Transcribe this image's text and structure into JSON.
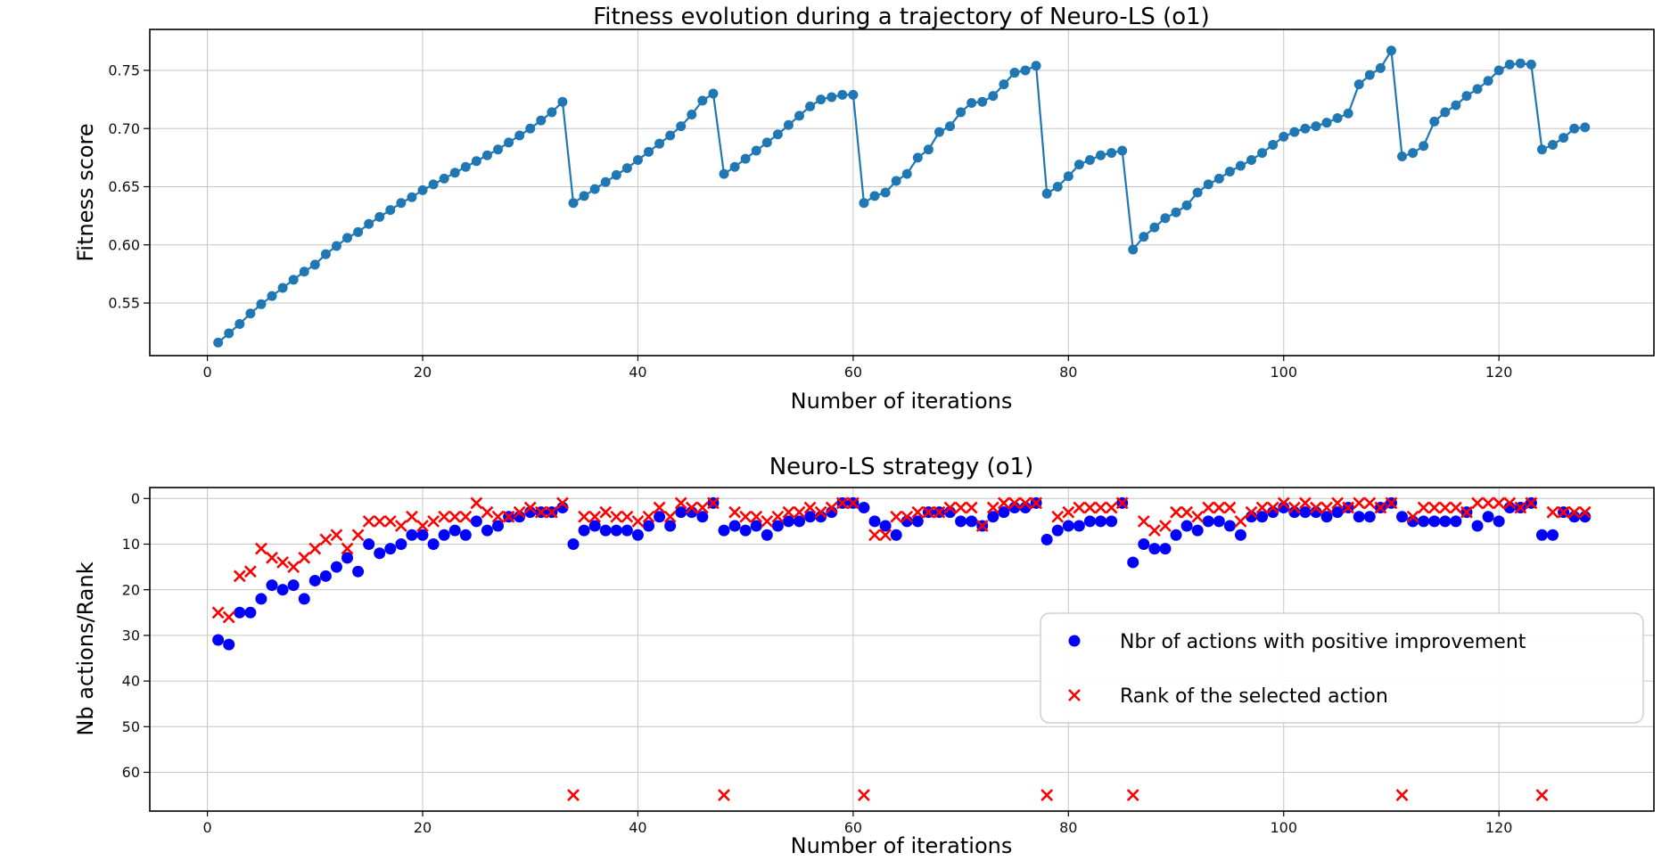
{
  "iterations": [
    1,
    2,
    3,
    4,
    5,
    6,
    7,
    8,
    9,
    10,
    11,
    12,
    13,
    14,
    15,
    16,
    17,
    18,
    19,
    20,
    21,
    22,
    23,
    24,
    25,
    26,
    27,
    28,
    29,
    30,
    31,
    32,
    33,
    34,
    35,
    36,
    37,
    38,
    39,
    40,
    41,
    42,
    43,
    44,
    45,
    46,
    47,
    48,
    49,
    50,
    51,
    52,
    53,
    54,
    55,
    56,
    57,
    58,
    59,
    60,
    61,
    62,
    63,
    64,
    65,
    66,
    67,
    68,
    69,
    70,
    71,
    72,
    73,
    74,
    75,
    76,
    77,
    78,
    79,
    80,
    81,
    82,
    83,
    84,
    85,
    86,
    87,
    88,
    89,
    90,
    91,
    92,
    93,
    94,
    95,
    96,
    97,
    98,
    99,
    100,
    101,
    102,
    103,
    104,
    105,
    106,
    107,
    108,
    109,
    110,
    111,
    112,
    113,
    114,
    115,
    116,
    117,
    118,
    119,
    120,
    121,
    122,
    123,
    124,
    125,
    126,
    127,
    128
  ],
  "chart_data": [
    {
      "type": "line",
      "title": "Fitness evolution during a trajectory of Neuro-LS (o1)",
      "xlabel": "Number of iterations",
      "ylabel": "Fitness score",
      "line_color": "#1f77b4",
      "marker": "circle",
      "grid": true,
      "xlim": [
        -5.35,
        134.4
      ],
      "ylim": [
        0.5048,
        0.7852
      ],
      "xticks": [
        0,
        20,
        40,
        60,
        80,
        100,
        120
      ],
      "yticks": [
        0.55,
        0.6,
        0.65,
        0.7,
        0.75
      ],
      "ytick_labels": [
        "0.55",
        "0.60",
        "0.65",
        "0.70",
        "0.75"
      ],
      "values": [
        0.516,
        0.524,
        0.532,
        0.541,
        0.549,
        0.556,
        0.563,
        0.57,
        0.577,
        0.583,
        0.592,
        0.599,
        0.606,
        0.611,
        0.618,
        0.624,
        0.63,
        0.636,
        0.641,
        0.647,
        0.652,
        0.657,
        0.662,
        0.667,
        0.672,
        0.677,
        0.682,
        0.688,
        0.694,
        0.7,
        0.707,
        0.714,
        0.723,
        0.636,
        0.642,
        0.648,
        0.654,
        0.66,
        0.666,
        0.673,
        0.68,
        0.687,
        0.694,
        0.702,
        0.712,
        0.724,
        0.73,
        0.661,
        0.667,
        0.674,
        0.681,
        0.688,
        0.695,
        0.703,
        0.711,
        0.719,
        0.725,
        0.727,
        0.729,
        0.729,
        0.636,
        0.642,
        0.645,
        0.655,
        0.661,
        0.675,
        0.682,
        0.697,
        0.702,
        0.714,
        0.722,
        0.723,
        0.728,
        0.738,
        0.748,
        0.75,
        0.754,
        0.644,
        0.65,
        0.659,
        0.669,
        0.673,
        0.677,
        0.679,
        0.681,
        0.596,
        0.607,
        0.615,
        0.623,
        0.628,
        0.634,
        0.645,
        0.652,
        0.657,
        0.663,
        0.668,
        0.673,
        0.679,
        0.686,
        0.693,
        0.697,
        0.7,
        0.702,
        0.705,
        0.709,
        0.713,
        0.738,
        0.746,
        0.752,
        0.767,
        0.676,
        0.679,
        0.685,
        0.706,
        0.714,
        0.72,
        0.728,
        0.734,
        0.741,
        0.75,
        0.755,
        0.756,
        0.755,
        0.682,
        0.686,
        0.692,
        0.7,
        0.701
      ]
    },
    {
      "type": "scatter",
      "title": "Neuro-LS strategy (o1)",
      "xlabel": "Number of iterations",
      "ylabel": "Nb actions/Rank",
      "grid": true,
      "y_inverted": true,
      "xlim": [
        -5.35,
        134.4
      ],
      "ylim": [
        -2.4,
        68.5
      ],
      "xticks": [
        0,
        20,
        40,
        60,
        80,
        100,
        120
      ],
      "yticks": [
        0,
        10,
        20,
        30,
        40,
        50,
        60
      ],
      "legend_position": "center right",
      "restart_iterations": [
        34,
        48,
        61,
        78,
        86,
        111,
        124
      ],
      "restart_rank_value": 65,
      "series": [
        {
          "name": "Nbr of actions with positive improvement",
          "marker": "circle",
          "color": "#0000ff",
          "values": [
            31,
            32,
            25,
            25,
            22,
            19,
            20,
            19,
            22,
            18,
            17,
            15,
            13,
            16,
            10,
            12,
            11,
            10,
            8,
            8,
            10,
            8,
            7,
            8,
            5,
            7,
            6,
            4,
            4,
            3,
            3,
            3,
            2,
            10,
            7,
            6,
            7,
            7,
            7,
            8,
            6,
            4,
            6,
            3,
            3,
            4,
            1,
            7,
            6,
            7,
            6,
            8,
            6,
            5,
            5,
            4,
            4,
            3,
            1,
            1,
            2,
            5,
            6,
            8,
            5,
            5,
            3,
            3,
            3,
            5,
            5,
            6,
            4,
            3,
            2,
            2,
            1,
            9,
            7,
            6,
            6,
            5,
            5,
            5,
            1,
            14,
            10,
            11,
            11,
            8,
            6,
            7,
            5,
            5,
            6,
            8,
            4,
            4,
            3,
            2,
            3,
            3,
            3,
            4,
            3,
            2,
            4,
            4,
            2,
            1,
            4,
            5,
            5,
            5,
            5,
            5,
            3,
            6,
            4,
            5,
            2,
            2,
            1,
            8,
            8,
            3,
            4,
            4
          ]
        },
        {
          "name": "Rank of the selected action",
          "marker": "x",
          "color": "#ff0000",
          "values": [
            25,
            26,
            17,
            16,
            11,
            13,
            14,
            15,
            13,
            11,
            9,
            8,
            11,
            8,
            5,
            5,
            5,
            6,
            4,
            6,
            5,
            4,
            4,
            4,
            1,
            3,
            4,
            4,
            3,
            2,
            3,
            3,
            1,
            65,
            4,
            4,
            3,
            4,
            4,
            5,
            4,
            2,
            4,
            1,
            2,
            2,
            1,
            65,
            3,
            4,
            4,
            5,
            4,
            3,
            3,
            2,
            3,
            2,
            1,
            1,
            65,
            8,
            8,
            4,
            4,
            3,
            3,
            3,
            2,
            2,
            2,
            6,
            2,
            1,
            1,
            1,
            1,
            65,
            4,
            3,
            2,
            2,
            2,
            2,
            1,
            65,
            5,
            7,
            6,
            3,
            3,
            4,
            2,
            2,
            2,
            5,
            3,
            2,
            2,
            1,
            2,
            1,
            2,
            2,
            1,
            2,
            1,
            1,
            2,
            1,
            65,
            4,
            2,
            2,
            2,
            2,
            3,
            1,
            1,
            1,
            1,
            2,
            1,
            65,
            3,
            3,
            3,
            3
          ]
        }
      ]
    }
  ]
}
